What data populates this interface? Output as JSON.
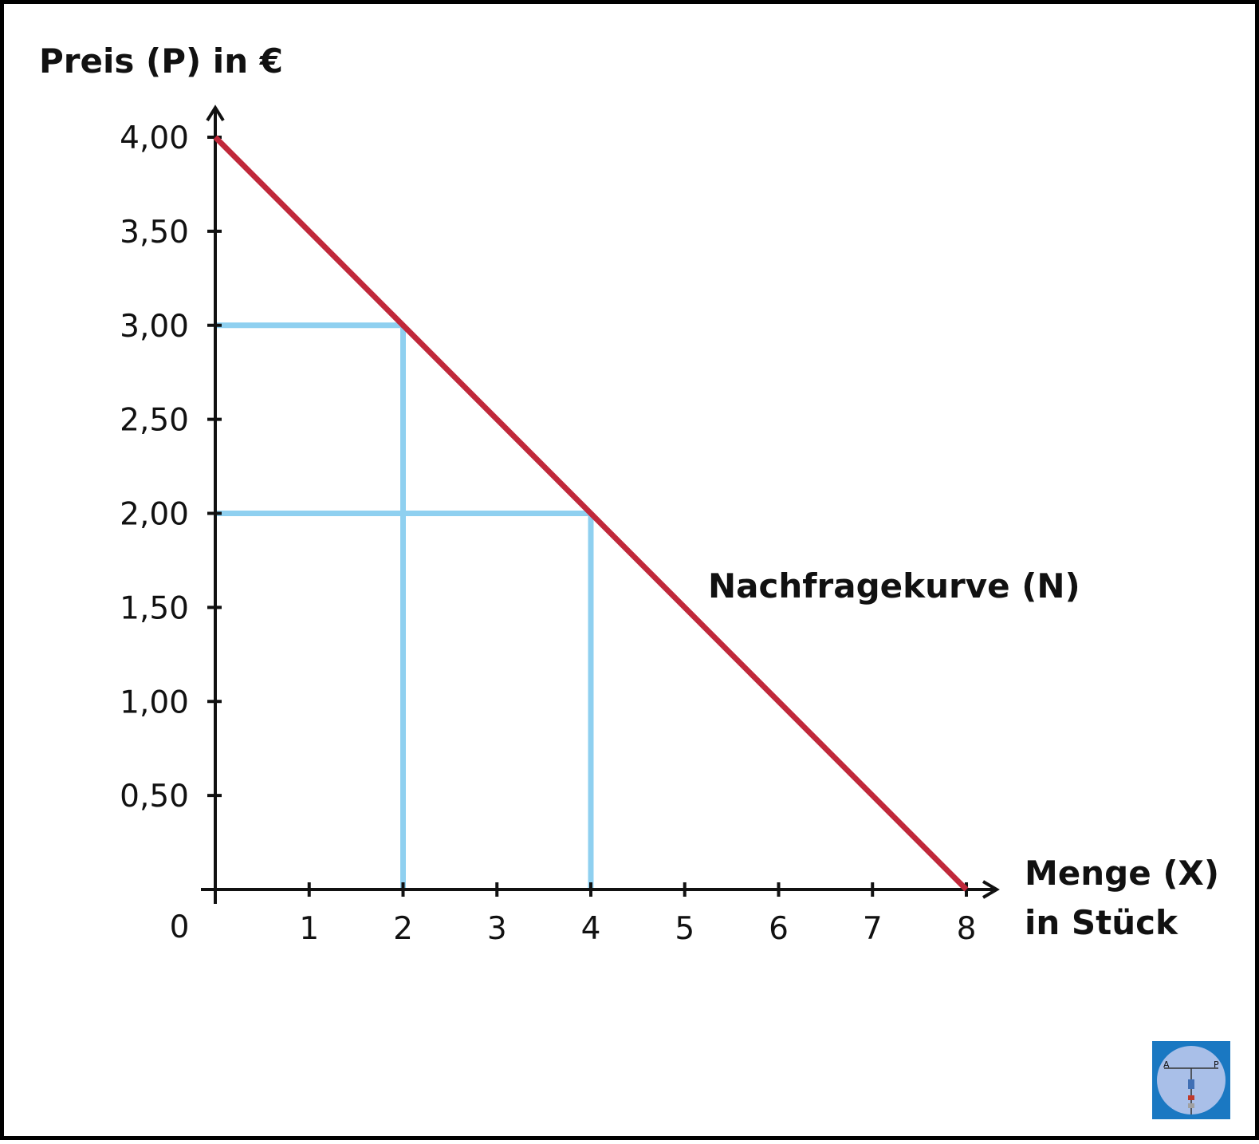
{
  "chart_data": {
    "type": "line",
    "ylabel": "Preis (P) in €",
    "xlabel_line1": "Menge (X)",
    "xlabel_line2": "in Stück",
    "origin_label": "0",
    "xlim": [
      0,
      8
    ],
    "ylim": [
      0,
      4
    ],
    "x_ticks": [
      1,
      2,
      3,
      4,
      5,
      6,
      7,
      8
    ],
    "x_tick_labels": [
      "1",
      "2",
      "3",
      "4",
      "5",
      "6",
      "7",
      "8"
    ],
    "y_ticks": [
      0.5,
      1,
      1.5,
      2,
      2.5,
      3,
      3.5,
      4
    ],
    "y_tick_labels": [
      "0,50",
      "1,00",
      "1,50",
      "2,00",
      "2,50",
      "3,00",
      "3,50",
      "4,00"
    ],
    "series": [
      {
        "name": "Nachfragekurve (N)",
        "color": "#c0283a",
        "points": [
          [
            0,
            4
          ],
          [
            8,
            0
          ]
        ]
      }
    ],
    "guide_lines": [
      {
        "x": 2,
        "y": 3
      },
      {
        "x": 4,
        "y": 2
      }
    ],
    "guide_color": "#8fd0f0",
    "axis_color": "#111111",
    "grid": false
  },
  "logo": {
    "bg_color": "#1a78c2",
    "circle_color": "#a9bfe8",
    "text_left": "A",
    "text_right": "P"
  }
}
